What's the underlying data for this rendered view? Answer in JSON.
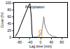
{
  "chart_data": {
    "type": "line",
    "x_label": "Lag time (min)",
    "y_label": "Cover (%)",
    "xlim": [
      -100,
      100
    ],
    "xticks": [
      -80,
      -40,
      0,
      40,
      80
    ],
    "ylim": [
      0,
      100
    ],
    "yticks": [
      0,
      20,
      40,
      60,
      80,
      100
    ],
    "grid": false,
    "series": [
      {
        "color": "#000000",
        "x": [
          -95,
          -85,
          -75,
          -65,
          -55,
          -45,
          -40,
          -35,
          -32,
          -30
        ],
        "values": [
          2,
          15,
          35,
          55,
          75,
          92,
          98,
          60,
          10,
          0
        ]
      },
      {
        "color": "#808080",
        "x": [
          -30,
          -10,
          0,
          5,
          10,
          12,
          15,
          20,
          30,
          45,
          60
        ],
        "values": [
          0,
          2,
          8,
          20,
          45,
          60,
          40,
          25,
          10,
          3,
          1
        ]
      },
      {
        "color": "#f0a020",
        "x": [
          -5,
          -5,
          5,
          5,
          -5
        ],
        "values": [
          0,
          20,
          20,
          0,
          0
        ]
      }
    ],
    "annotations": [
      {
        "text": "Precipitation",
        "x": -20,
        "y": 88
      }
    ]
  }
}
